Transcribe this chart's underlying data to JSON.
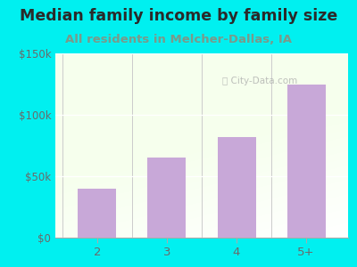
{
  "title": "Median family income by family size",
  "subtitle": "All residents in Melcher-Dallas, IA",
  "categories": [
    "2",
    "3",
    "4",
    "5+"
  ],
  "values": [
    40000,
    65000,
    82000,
    125000
  ],
  "bar_color": "#c8a8d8",
  "background_outer": "#00f0f0",
  "title_color": "#2a2a2a",
  "subtitle_color": "#7a9a8a",
  "tick_color": "#6a6a6a",
  "ylim": [
    0,
    150000
  ],
  "yticks": [
    0,
    50000,
    100000,
    150000
  ],
  "ytick_labels": [
    "$0",
    "$50k",
    "$100k",
    "$150k"
  ],
  "watermark": "City-Data.com",
  "title_fontsize": 12.5,
  "subtitle_fontsize": 9.5
}
